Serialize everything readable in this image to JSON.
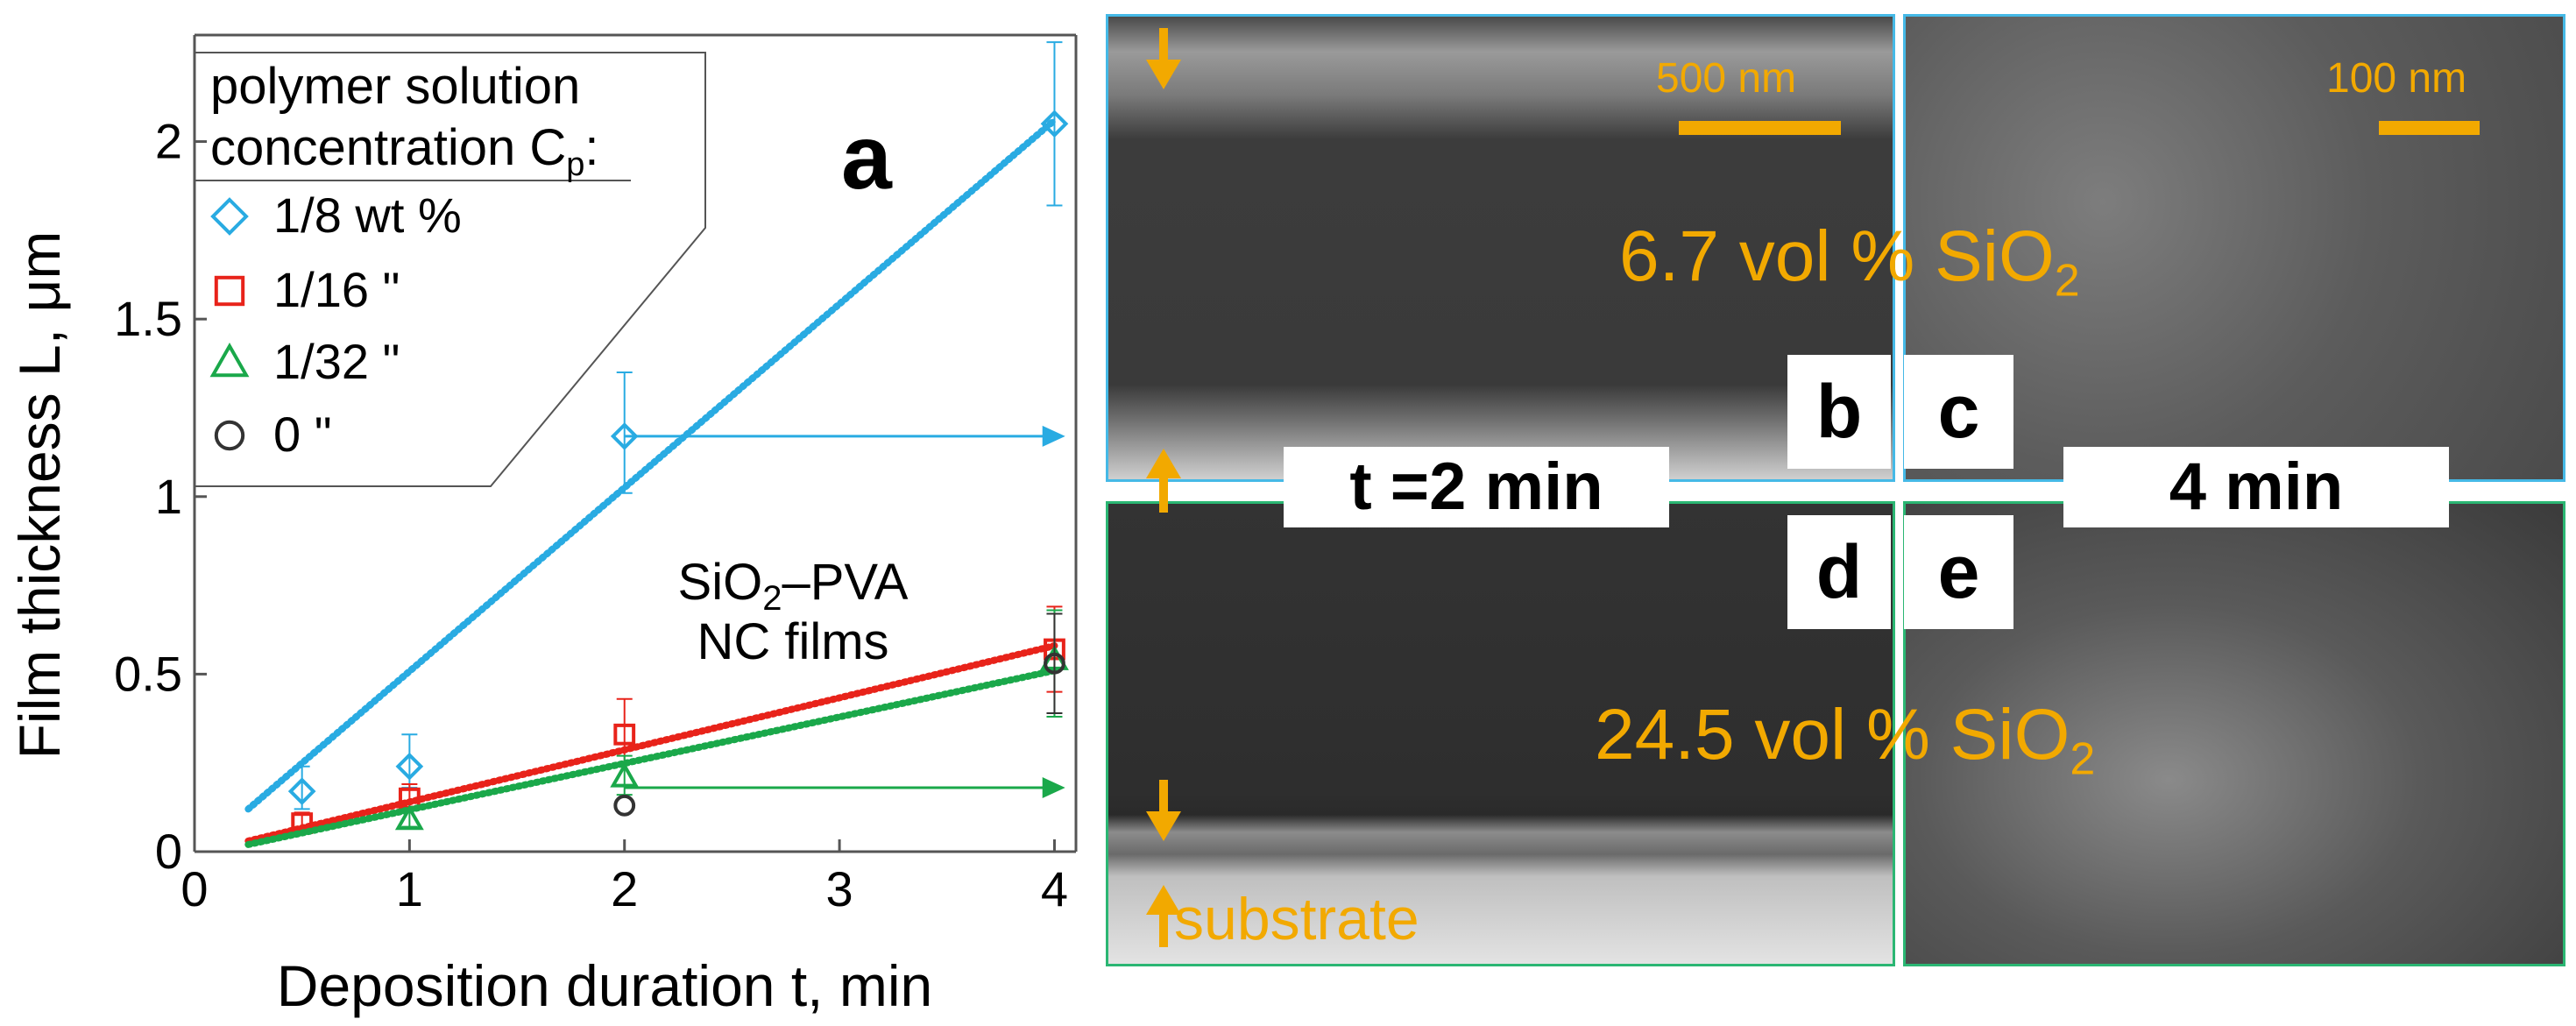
{
  "chart_data": {
    "type": "scatter",
    "panel_label": "a",
    "xlabel": "Deposition duration t, min",
    "ylabel": "Film thickness L, μm",
    "xlim": [
      0,
      4.1
    ],
    "ylim": [
      0,
      2.3
    ],
    "x_ticks": [
      "0",
      "1",
      "2",
      "3",
      "4"
    ],
    "y_ticks": [
      "0",
      "0.5",
      "1",
      "1.5",
      "2"
    ],
    "legend_title_line1": "polymer solution",
    "legend_title_line2": "concentration C",
    "legend_title_sub": "p",
    "legend_title_suffix": ":",
    "legend_placement": "top-left",
    "series": [
      {
        "name": "1/8 wt %",
        "marker": "diamond",
        "color": "#29abe2",
        "x": [
          0.5,
          1,
          2,
          4
        ],
        "y": [
          0.17,
          0.24,
          1.17,
          2.05
        ],
        "err_up": [
          0.07,
          0.09,
          0.18,
          0.23
        ],
        "err_down": [
          0.05,
          0.06,
          0.16,
          0.23
        ],
        "fit": {
          "x": [
            0.25,
            4
          ],
          "y": [
            0.12,
            2.06
          ]
        }
      },
      {
        "name": "1/16 \"",
        "marker": "square",
        "color": "#e8231a",
        "x": [
          0.5,
          1,
          2,
          4
        ],
        "y": [
          0.08,
          0.15,
          0.33,
          0.57
        ],
        "err_up": [
          0.03,
          0.04,
          0.1,
          0.12
        ],
        "err_down": [
          0.02,
          0.03,
          0.08,
          0.12
        ],
        "fit": {
          "x": [
            0.25,
            4
          ],
          "y": [
            0.03,
            0.58
          ]
        }
      },
      {
        "name": "1/32 \"",
        "marker": "triangle",
        "color": "#1aa84a",
        "x": [
          1,
          2,
          4
        ],
        "y": [
          0.09,
          0.21,
          0.54
        ],
        "err_up": [
          0.03,
          0.06,
          0.14
        ],
        "err_down": [
          0.02,
          0.05,
          0.16
        ],
        "fit": {
          "x": [
            0.25,
            4
          ],
          "y": [
            0.02,
            0.51
          ]
        }
      },
      {
        "name": "0       \"",
        "marker": "circle",
        "color": "#333333",
        "x": [
          2,
          4
        ],
        "y": [
          0.13,
          0.53
        ],
        "err_up": [
          0,
          0.14
        ],
        "err_down": [
          0,
          0.14
        ],
        "fit": null
      }
    ],
    "annotation_formula_a": "SiO",
    "annotation_formula_sub": "2",
    "annotation_formula_b": "–PVA",
    "annotation_line2": "NC films",
    "arrows": [
      {
        "color": "#29abe2",
        "y": 1.17,
        "x_from": 2.0,
        "x_to": 4.05
      },
      {
        "color": "#1aa84a",
        "y": 0.18,
        "x_from": 2.0,
        "x_to": 4.05
      }
    ]
  },
  "micrographs": {
    "scale_b": "500 nm",
    "scale_c": "100 nm",
    "label_top_main": "6.7 vol % SiO",
    "label_top_sub": "2",
    "label_bottom_main": "24.5 vol % SiO",
    "label_bottom_sub": "2",
    "substrate": "substrate",
    "time_left": "t =2 min",
    "time_right": "4 min",
    "letters": [
      "b",
      "c",
      "d",
      "e"
    ],
    "accent_color": "#f2a900",
    "top_border_color": "#45b9e6",
    "bottom_border_color": "#2bb673"
  }
}
